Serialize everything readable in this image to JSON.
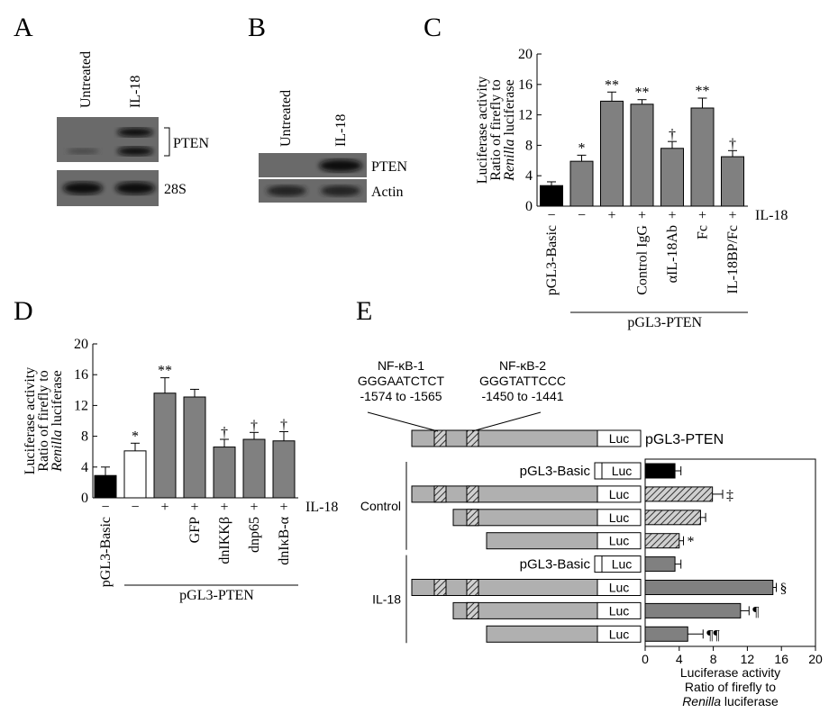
{
  "panel_a": {
    "label": "A",
    "lanes": [
      "Untreated",
      "IL-18"
    ],
    "bands": [
      "PTEN",
      "28S"
    ]
  },
  "panel_b": {
    "label": "B",
    "lanes": [
      "Untreated",
      "IL-18"
    ],
    "bands": [
      "PTEN",
      "Actin"
    ]
  },
  "chart_data": [
    {
      "type": "bar",
      "label": "C",
      "ylabel": [
        "Luciferase activity",
        "Ratio of firefly to"
      ],
      "ylabel_italic": "Renilla",
      "ylabel_end": "luciferase",
      "categories": [
        "pGL3-Basic",
        null,
        null,
        "Control IgG",
        "αIL-18Ab",
        "Fc",
        "IL-18BP/Fc"
      ],
      "values": [
        2.7,
        5.9,
        13.8,
        13.4,
        7.6,
        12.9,
        6.5
      ],
      "errors": [
        0.5,
        0.8,
        1.2,
        0.6,
        0.9,
        1.3,
        0.8
      ],
      "colors": [
        "#000000",
        "#808080",
        "#808080",
        "#808080",
        "#808080",
        "#808080",
        "#808080"
      ],
      "annotations": [
        null,
        "*",
        "**",
        "**",
        "†",
        "**",
        "†"
      ],
      "treatment_label": "IL-18",
      "treatment": [
        "−",
        "−",
        "+",
        "+",
        "+",
        "+",
        "+"
      ],
      "group_label": "pGL3-PTEN",
      "ylim": [
        0,
        20
      ],
      "yticks": [
        0,
        4,
        8,
        12,
        16,
        20
      ]
    },
    {
      "type": "bar",
      "label": "D",
      "ylabel": [
        "Luciferase activity",
        "Ratio of firefly to"
      ],
      "ylabel_italic": "Renilla",
      "ylabel_end": "luciferase",
      "categories": [
        "pGL3-Basic",
        null,
        null,
        "GFP",
        "dnIKKβ",
        "dnp65",
        "dnIκB-α"
      ],
      "values": [
        2.9,
        6.1,
        13.6,
        13.1,
        6.6,
        7.6,
        7.4
      ],
      "errors": [
        1.1,
        1.0,
        2.0,
        1.0,
        1.0,
        0.9,
        1.2
      ],
      "colors": [
        "#000000",
        "#ffffff",
        "#808080",
        "#808080",
        "#808080",
        "#808080",
        "#808080"
      ],
      "annotations": [
        null,
        "*",
        "**",
        null,
        "†",
        "†",
        "†"
      ],
      "treatment_label": "IL-18",
      "treatment": [
        "−",
        "−",
        "+",
        "+",
        "+",
        "+",
        "+"
      ],
      "group_label": "pGL3-PTEN",
      "ylim": [
        0,
        20
      ],
      "yticks": [
        0,
        4,
        8,
        12,
        16,
        20
      ]
    },
    {
      "type": "barh",
      "label": "E",
      "construct_label": "pGL3-PTEN",
      "luc_label": "Luc",
      "sites": [
        {
          "name": "NF-κB-1",
          "seq": "GGGAATCTCT",
          "pos": "-1574 to -1565"
        },
        {
          "name": "NF-κB-2",
          "seq": "GGGTATTCCC",
          "pos": "-1450 to -1441"
        }
      ],
      "groups": [
        "Control",
        "IL-18"
      ],
      "row_labels": [
        "pGL3-Basic",
        null,
        null,
        null,
        "pGL3-Basic",
        null,
        null,
        null
      ],
      "values": [
        3.5,
        7.9,
        6.5,
        4.0,
        3.5,
        15.0,
        11.2,
        5.0
      ],
      "errors": [
        0.7,
        1.2,
        0.6,
        0.5,
        0.7,
        0.4,
        1.0,
        1.8
      ],
      "colors": [
        "#000000",
        "#909090",
        "#909090",
        "#909090",
        "#808080",
        "#808080",
        "#808080",
        "#808080"
      ],
      "hatch": [
        false,
        true,
        true,
        true,
        false,
        false,
        false,
        false
      ],
      "annotations": [
        null,
        "‡",
        null,
        "*",
        null,
        "§",
        "¶",
        "¶¶"
      ],
      "xlim": [
        0,
        20
      ],
      "xticks": [
        0,
        4,
        8,
        12,
        16,
        20
      ],
      "xlabel": [
        "Luciferase activity",
        "Ratio of firefly to"
      ],
      "xlabel_italic": "Renilla",
      "xlabel_end": "luciferase"
    }
  ]
}
